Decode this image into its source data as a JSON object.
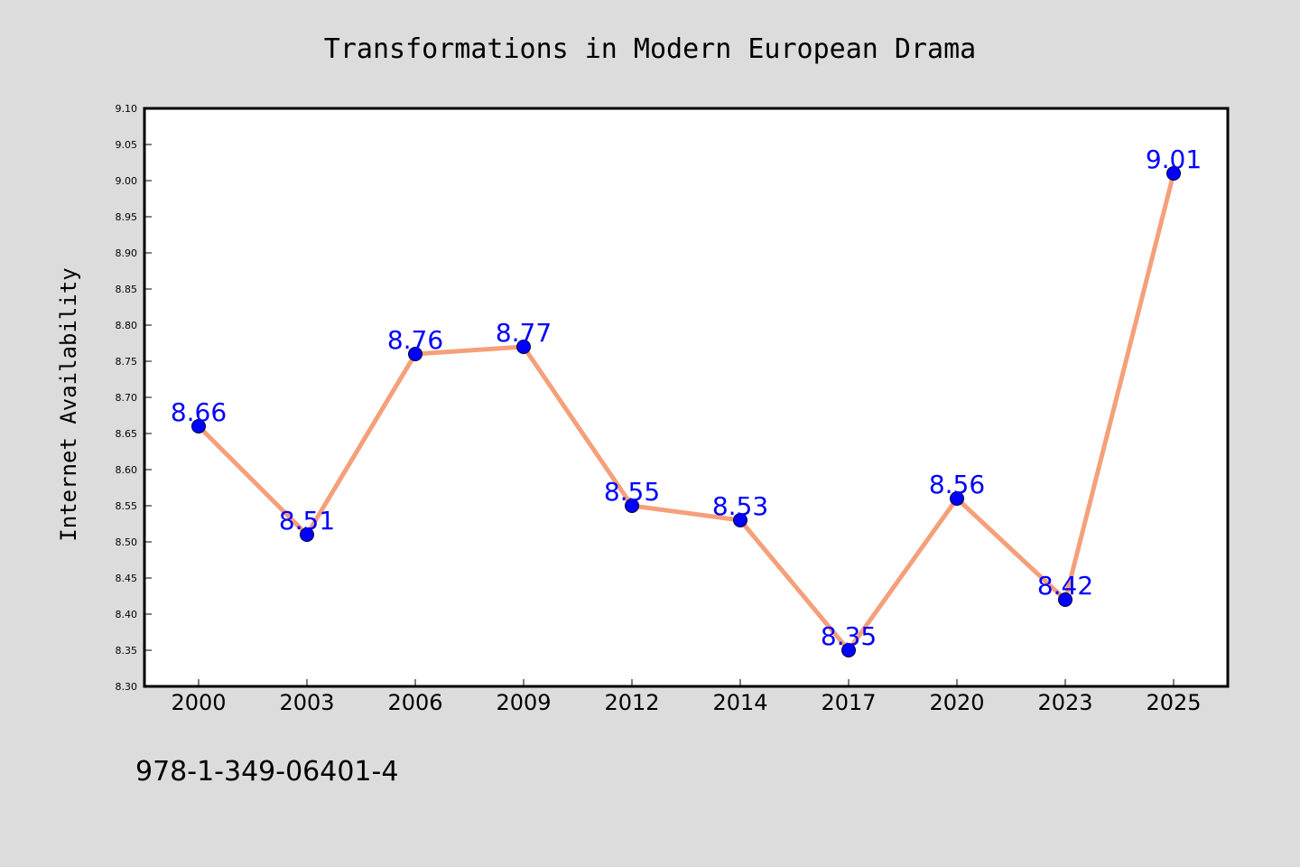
{
  "chart_data": {
    "type": "line",
    "title": "Transformations in Modern European Drama",
    "xlabel": "",
    "ylabel": "Internet Availability",
    "categories": [
      "2000",
      "2003",
      "2006",
      "2009",
      "2012",
      "2014",
      "2017",
      "2020",
      "2023",
      "2025"
    ],
    "values": [
      8.66,
      8.51,
      8.76,
      8.77,
      8.55,
      8.53,
      8.35,
      8.56,
      8.42,
      9.01
    ],
    "data_labels": [
      "8.66",
      "8.51",
      "8.76",
      "8.77",
      "8.55",
      "8.53",
      "8.35",
      "8.56",
      "8.42",
      "9.01"
    ],
    "ylim": [
      8.3,
      9.1
    ],
    "yticks": [
      "8.30",
      "8.35",
      "8.40",
      "8.45",
      "8.50",
      "8.55",
      "8.60",
      "8.65",
      "8.70",
      "8.75",
      "8.80",
      "8.85",
      "8.90",
      "8.95",
      "9.00",
      "9.05",
      "9.10"
    ],
    "grid": false,
    "legend": "none",
    "line_color": "#f4a07a",
    "marker_color": "#0000ff",
    "label_color": "#0000ff"
  },
  "footer": {
    "isbn": "978-1-349-06401-4"
  },
  "colors": {
    "background": "#dcdcdc",
    "plot_background": "#ffffff"
  }
}
